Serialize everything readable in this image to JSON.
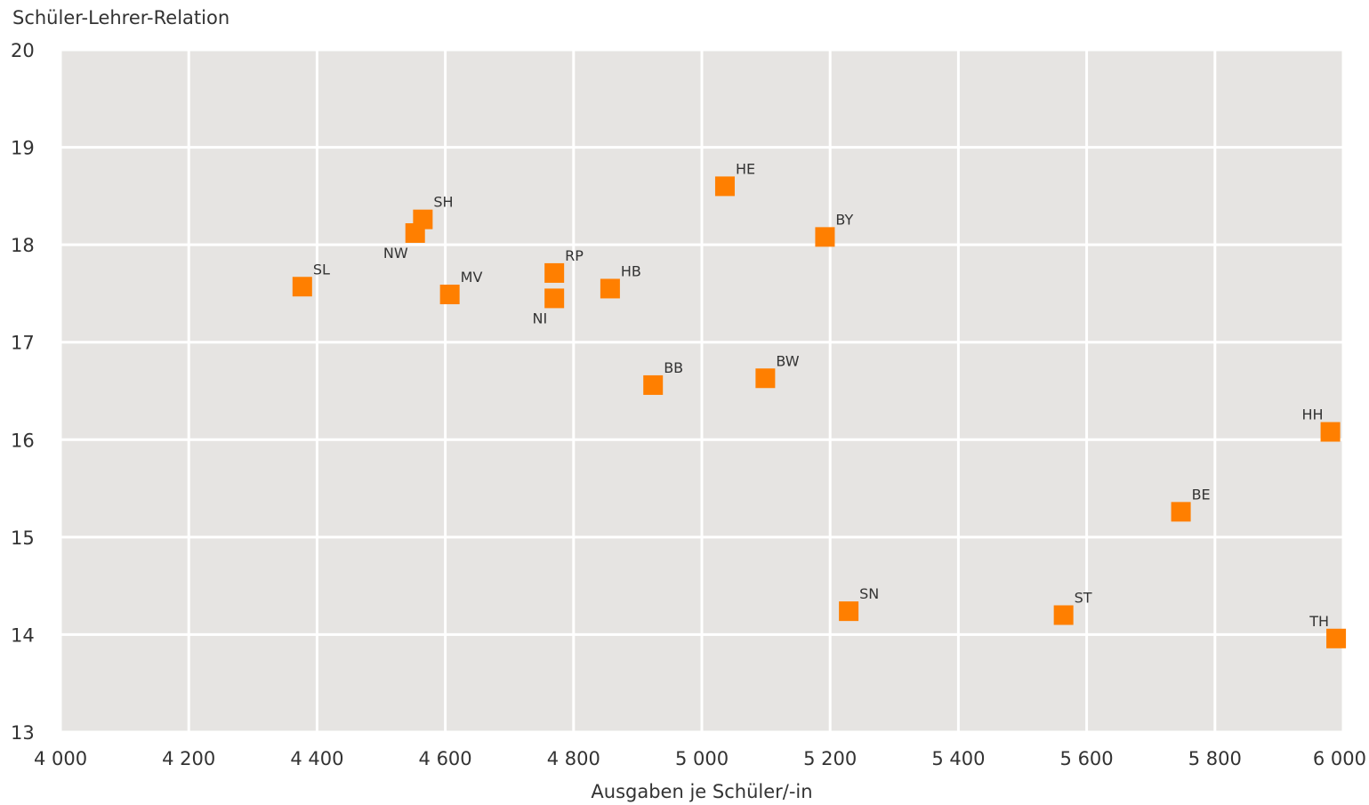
{
  "chart_data": {
    "type": "scatter",
    "title": "",
    "xlabel": "Ausgaben je Schüler/-in",
    "ylabel": "Schüler-Lehrer-Relation",
    "xlim": [
      4000,
      6000
    ],
    "ylim": [
      13,
      20
    ],
    "x_ticks": [
      4000,
      4200,
      4400,
      4600,
      4800,
      5000,
      5200,
      5400,
      5600,
      5800,
      6000
    ],
    "x_tick_labels": [
      "4 000",
      "4 200",
      "4 400",
      "4 600",
      "4 800",
      "5 000",
      "5 200",
      "5 400",
      "5 600",
      "5 800",
      "6 000"
    ],
    "y_ticks": [
      13,
      14,
      15,
      16,
      17,
      18,
      19,
      20
    ],
    "y_tick_labels": [
      "13",
      "14",
      "15",
      "16",
      "17",
      "18",
      "19",
      "20"
    ],
    "grid": true,
    "marker_color": "#FF7F00",
    "background_color": "#E6E4E2",
    "points": [
      {
        "label": "SL",
        "x": 4377,
        "y": 17.57,
        "label_pos": "right"
      },
      {
        "label": "NW",
        "x": 4553,
        "y": 18.12,
        "label_pos": "left"
      },
      {
        "label": "SH",
        "x": 4565,
        "y": 18.26,
        "label_pos": "right"
      },
      {
        "label": "MV",
        "x": 4607,
        "y": 17.49,
        "label_pos": "right"
      },
      {
        "label": "RP",
        "x": 4770,
        "y": 17.71,
        "label_pos": "right"
      },
      {
        "label": "NI",
        "x": 4770,
        "y": 17.45,
        "label_pos": "left"
      },
      {
        "label": "HB",
        "x": 4857,
        "y": 17.55,
        "label_pos": "right"
      },
      {
        "label": "BB",
        "x": 4924,
        "y": 16.56,
        "label_pos": "right"
      },
      {
        "label": "HE",
        "x": 5036,
        "y": 18.6,
        "label_pos": "right"
      },
      {
        "label": "BW",
        "x": 5099,
        "y": 16.63,
        "label_pos": "right"
      },
      {
        "label": "BY",
        "x": 5192,
        "y": 18.08,
        "label_pos": "right"
      },
      {
        "label": "SN",
        "x": 5229,
        "y": 14.24,
        "label_pos": "right"
      },
      {
        "label": "ST",
        "x": 5564,
        "y": 14.2,
        "label_pos": "right"
      },
      {
        "label": "BE",
        "x": 5747,
        "y": 15.26,
        "label_pos": "right"
      },
      {
        "label": "HH",
        "x": 5980,
        "y": 16.08,
        "label_pos": "left"
      },
      {
        "label": "TH",
        "x": 5989,
        "y": 13.96,
        "label_pos": "left"
      }
    ]
  }
}
